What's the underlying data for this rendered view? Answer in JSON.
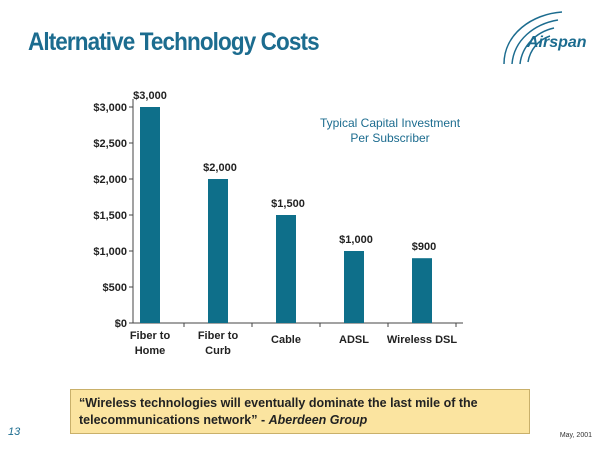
{
  "slide": {
    "title": "Alternative Technology Costs",
    "logo_text": "Airspan",
    "page_number": "13",
    "date": "May, 2001"
  },
  "chart_data": {
    "type": "bar",
    "title": "Typical Capital Investment Per Subscriber",
    "title_lines": [
      "Typical Capital Investment",
      "Per Subscriber"
    ],
    "categories": [
      "Fiber to Home",
      "Fiber to Curb",
      "Cable",
      "ADSL",
      "Wireless DSL"
    ],
    "category_lines": [
      [
        "Fiber to",
        "Home"
      ],
      [
        "Fiber to",
        "Curb"
      ],
      [
        "Cable"
      ],
      [
        "ADSL"
      ],
      [
        "Wireless DSL"
      ]
    ],
    "values": [
      3000,
      2000,
      1500,
      1000,
      900
    ],
    "data_labels": [
      "$3,000",
      "$2,000",
      "$1,500",
      "$1,000",
      "$900"
    ],
    "y_ticks": [
      "$0",
      "$500",
      "$1,000",
      "$1,500",
      "$2,000",
      "$2,500",
      "$3,000"
    ],
    "y_tick_values": [
      0,
      500,
      1000,
      1500,
      2000,
      2500,
      3000
    ],
    "ylim": [
      0,
      3000
    ],
    "bar_color": "#0e6f8a",
    "grid": false,
    "legend": "none"
  },
  "quote": {
    "text": "“Wireless technologies will eventually dominate the last mile of the telecommunications network” - ",
    "source": "Aberdeen Group"
  },
  "colors": {
    "title": "#1c6c8f",
    "quote_background": "#fbe4a0"
  }
}
